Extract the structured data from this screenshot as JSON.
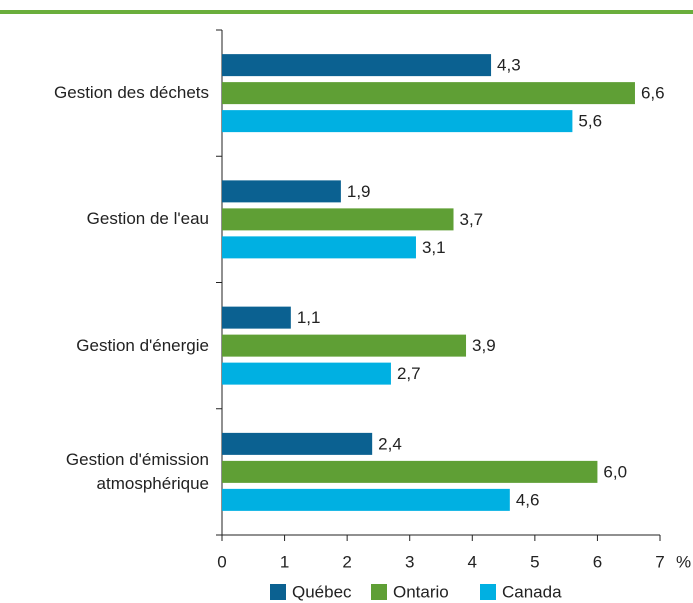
{
  "chart_data": {
    "type": "bar",
    "orientation": "horizontal",
    "categories": [
      "Gestion des déchets",
      "Gestion de l'eau",
      "Gestion d'énergie",
      "Gestion d'émission\natmosphérique"
    ],
    "series": [
      {
        "name": "Québec",
        "color": "#0b6191",
        "values": [
          4.3,
          1.9,
          1.1,
          2.4
        ],
        "value_labels": [
          "4,3",
          "1,9",
          "1,1",
          "2,4"
        ]
      },
      {
        "name": "Ontario",
        "color": "#5f9f35",
        "values": [
          6.6,
          3.7,
          3.9,
          6.0
        ],
        "value_labels": [
          "6,6",
          "3,7",
          "3,9",
          "6,0"
        ]
      },
      {
        "name": "Canada",
        "color": "#00b0e2",
        "values": [
          5.6,
          3.1,
          2.7,
          4.6
        ],
        "value_labels": [
          "5,6",
          "3,1",
          "2,7",
          "4,6"
        ]
      }
    ],
    "xlim": [
      0,
      7
    ],
    "xticks": [
      0,
      1,
      2,
      3,
      4,
      5,
      6,
      7
    ],
    "x_unit": "%",
    "legend": "bottom"
  }
}
